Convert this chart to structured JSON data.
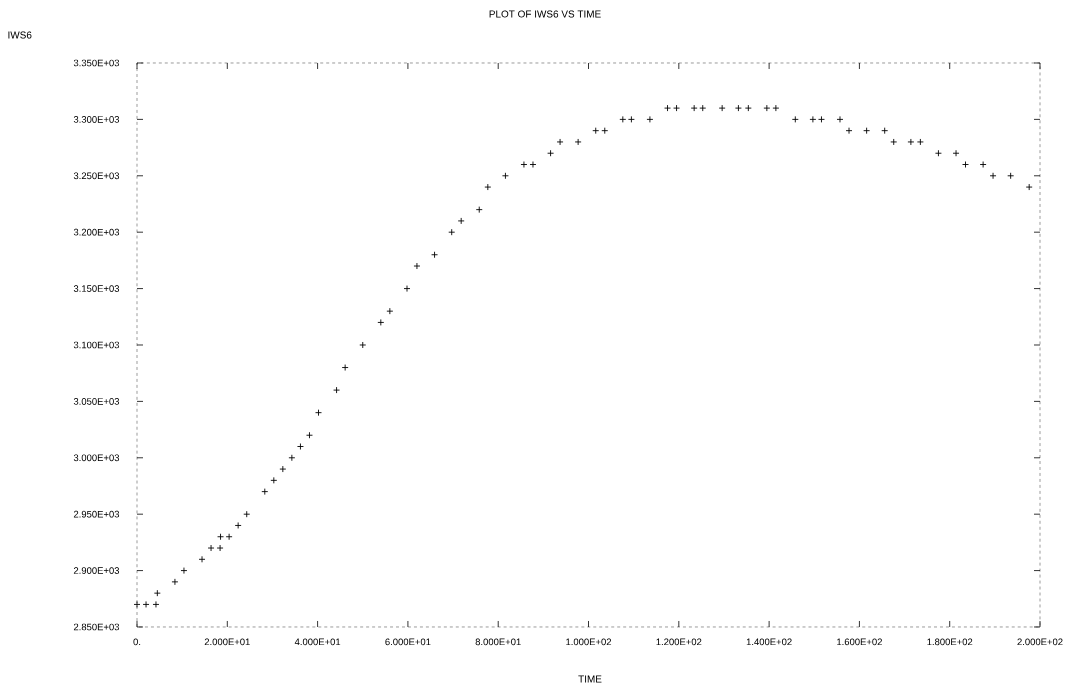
{
  "chart_data": {
    "type": "scatter",
    "title": "PLOT OF IWS6   VS TIME",
    "xlabel": "TIME",
    "ylabel": "IWS6",
    "color": "#000000",
    "marker": "cross",
    "grid": false,
    "x": [
      0.0,
      2.0,
      4.2,
      4.5,
      8.4,
      10.4,
      14.4,
      16.4,
      18.4,
      18.5,
      20.4,
      22.4,
      24.3,
      28.3,
      30.3,
      32.3,
      34.3,
      36.2,
      38.2,
      40.2,
      44.2,
      46.1,
      50.0,
      54.0,
      56.0,
      59.8,
      62.0,
      65.9,
      69.7,
      71.8,
      75.8,
      77.7,
      81.6,
      85.7,
      87.7,
      91.6,
      93.7,
      97.7,
      101.6,
      103.6,
      107.6,
      109.5,
      113.6,
      117.5,
      119.5,
      123.4,
      125.3,
      129.6,
      133.2,
      135.4,
      139.5,
      141.5,
      145.8,
      149.7,
      151.6,
      155.7,
      157.7,
      161.6,
      165.6,
      167.6,
      171.4,
      173.5,
      177.5,
      181.4,
      183.5,
      187.4,
      189.6,
      193.5,
      197.6
    ],
    "values": [
      2870,
      2870,
      2870,
      2880,
      2890,
      2900,
      2910,
      2920,
      2920,
      2930,
      2930,
      2940,
      2950,
      2970,
      2980,
      2990,
      3000,
      3010,
      3020,
      3040,
      3060,
      3080,
      3100,
      3120,
      3130,
      3150,
      3170,
      3180,
      3200,
      3210,
      3220,
      3240,
      3250,
      3260,
      3260,
      3270,
      3280,
      3280,
      3290,
      3290,
      3300,
      3300,
      3300,
      3310,
      3310,
      3310,
      3310,
      3310,
      3310,
      3310,
      3310,
      3310,
      3300,
      3300,
      3300,
      3300,
      3290,
      3290,
      3290,
      3280,
      3280,
      3280,
      3270,
      3270,
      3260,
      3260,
      3250,
      3250,
      3240
    ],
    "xlim": [
      0,
      200
    ],
    "ylim": [
      2850,
      3350
    ],
    "xticks": [
      {
        "value": 0,
        "label": "0."
      },
      {
        "value": 20,
        "label": "2.000E+01"
      },
      {
        "value": 40,
        "label": "4.000E+01"
      },
      {
        "value": 60,
        "label": "6.000E+01"
      },
      {
        "value": 80,
        "label": "8.000E+01"
      },
      {
        "value": 100,
        "label": "1.000E+02"
      },
      {
        "value": 120,
        "label": "1.200E+02"
      },
      {
        "value": 140,
        "label": "1.400E+02"
      },
      {
        "value": 160,
        "label": "1.600E+02"
      },
      {
        "value": 180,
        "label": "1.800E+02"
      },
      {
        "value": 200,
        "label": "2.000E+02"
      }
    ],
    "yticks": [
      {
        "value": 2850,
        "label": "2.850E+03"
      },
      {
        "value": 2900,
        "label": "2.900E+03"
      },
      {
        "value": 2950,
        "label": "2.950E+03"
      },
      {
        "value": 3000,
        "label": "3.000E+03"
      },
      {
        "value": 3050,
        "label": "3.050E+03"
      },
      {
        "value": 3100,
        "label": "3.100E+03"
      },
      {
        "value": 3150,
        "label": "3.150E+03"
      },
      {
        "value": 3200,
        "label": "3.200E+03"
      },
      {
        "value": 3250,
        "label": "3.250E+03"
      },
      {
        "value": 3300,
        "label": "3.300E+03"
      },
      {
        "value": 3350,
        "label": "3.350E+03"
      }
    ]
  }
}
